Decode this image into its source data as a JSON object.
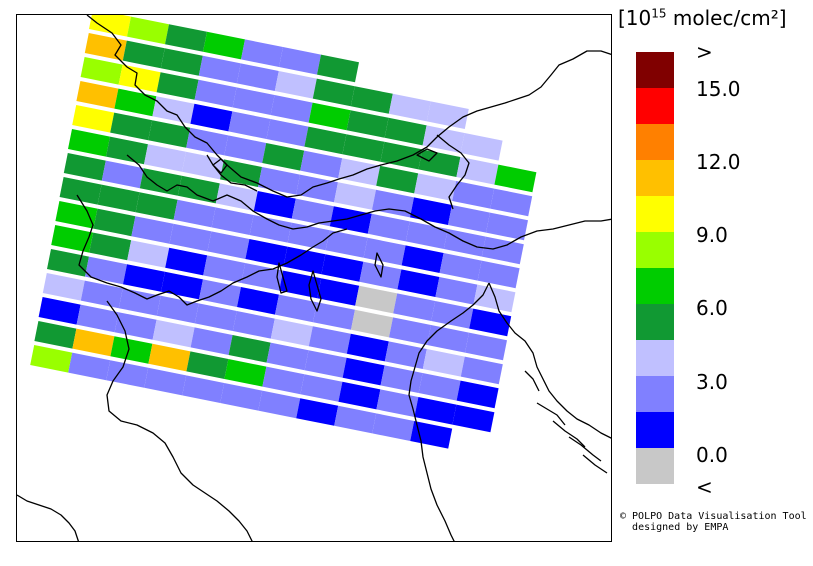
{
  "legend": {
    "title_prefix": "[10",
    "title_exp": "15",
    "title_suffix": " molec/cm²]",
    "classes": [
      {
        "color": "#800000"
      },
      {
        "color": "#ff0000"
      },
      {
        "color": "#ff8000"
      },
      {
        "color": "#ffc000"
      },
      {
        "color": "#ffff00"
      },
      {
        "color": "#99ff00"
      },
      {
        "color": "#00cc00"
      },
      {
        "color": "#119933"
      },
      {
        "color": "#c0c0ff"
      },
      {
        "color": "#8080ff"
      },
      {
        "color": "#0000ff"
      },
      {
        "color": "#c8c8c8"
      }
    ],
    "labels": [
      ">",
      "15.0",
      "12.0",
      "9.0",
      "6.0",
      "3.0",
      "0.0",
      "<"
    ]
  },
  "credit": {
    "line1": "© POLPO Data Visualisation Tool",
    "line2": "designed by EMPA"
  },
  "swath": {
    "rows": [
      [
        "#ffff00",
        "#99ff00",
        "#119933",
        "#00cc00",
        "#8080ff",
        "#8080ff",
        "#119933"
      ],
      [
        "#ffc000",
        "#119933",
        "#119933",
        "#8080ff",
        "#8080ff",
        "#c0c0ff",
        "#119933",
        "#119933",
        "#c0c0ff",
        "#c0c0ff"
      ],
      [
        "#99ff00",
        "#ffff00",
        "#119933",
        "#8080ff",
        "#8080ff",
        "#8080ff",
        "#00cc00",
        "#119933",
        "#119933",
        "#c0c0ff",
        "#c0c0ff"
      ],
      [
        "#ffc000",
        "#00cc00",
        "#c0c0ff",
        "#0000ff",
        "#8080ff",
        "#8080ff",
        "#119933",
        "#119933",
        "#119933",
        "#119933",
        "#c0c0ff",
        "#00cc00"
      ],
      [
        "#ffff00",
        "#119933",
        "#119933",
        "#8080ff",
        "#8080ff",
        "#119933",
        "#8080ff",
        "#c0c0ff",
        "#119933",
        "#c0c0ff",
        "#8080ff",
        "#8080ff"
      ],
      [
        "#00cc00",
        "#119933",
        "#c0c0ff",
        "#c0c0ff",
        "#119933",
        "#8080ff",
        "#8080ff",
        "#c0c0ff",
        "#8080ff",
        "#0000ff",
        "#8080ff",
        "#8080ff"
      ],
      [
        "#119933",
        "#8080ff",
        "#119933",
        "#119933",
        "#c0c0ff",
        "#0000ff",
        "#8080ff",
        "#0000ff",
        "#8080ff",
        "#8080ff",
        "#8080ff",
        "#8080ff"
      ],
      [
        "#119933",
        "#119933",
        "#119933",
        "#8080ff",
        "#8080ff",
        "#8080ff",
        "#8080ff",
        "#8080ff",
        "#8080ff",
        "#0000ff",
        "#8080ff",
        "#8080ff"
      ],
      [
        "#00cc00",
        "#119933",
        "#8080ff",
        "#8080ff",
        "#8080ff",
        "#0000ff",
        "#0000ff",
        "#0000ff",
        "#8080ff",
        "#0000ff",
        "#8080ff",
        "#c0c0ff"
      ],
      [
        "#00cc00",
        "#119933",
        "#c0c0ff",
        "#0000ff",
        "#8080ff",
        "#8080ff",
        "#0000ff",
        "#0000ff",
        "#c8c8c8",
        "#8080ff",
        "#8080ff",
        "#0000ff"
      ],
      [
        "#119933",
        "#8080ff",
        "#0000ff",
        "#0000ff",
        "#8080ff",
        "#0000ff",
        "#8080ff",
        "#8080ff",
        "#c8c8c8",
        "#8080ff",
        "#8080ff",
        "#8080ff"
      ],
      [
        "#c0c0ff",
        "#8080ff",
        "#8080ff",
        "#8080ff",
        "#8080ff",
        "#8080ff",
        "#c0c0ff",
        "#8080ff",
        "#0000ff",
        "#8080ff",
        "#c0c0ff",
        "#8080ff"
      ],
      [
        "#0000ff",
        "#8080ff",
        "#8080ff",
        "#c0c0ff",
        "#8080ff",
        "#119933",
        "#8080ff",
        "#8080ff",
        "#0000ff",
        "#8080ff",
        "#8080ff",
        "#0000ff"
      ],
      [
        "#119933",
        "#ffc000",
        "#00cc00",
        "#ffc000",
        "#119933",
        "#00cc00",
        "#8080ff",
        "#8080ff",
        "#0000ff",
        "#8080ff",
        "#0000ff",
        "#0000ff"
      ],
      [
        "#99ff00",
        "#8080ff",
        "#8080ff",
        "#8080ff",
        "#8080ff",
        "#8080ff",
        "#8080ff",
        "#0000ff",
        "#8080ff",
        "#8080ff",
        "#0000ff"
      ]
    ]
  }
}
